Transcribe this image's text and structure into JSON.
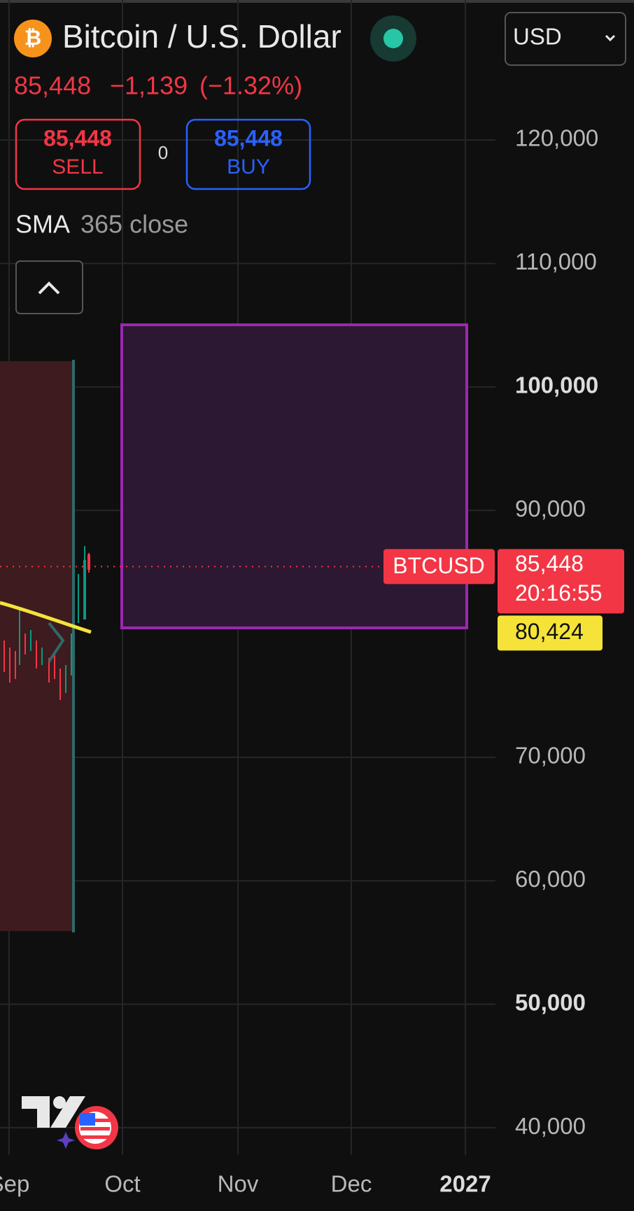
{
  "header": {
    "title": "Bitcoin / U.S. Dollar",
    "currency": "USD",
    "price": "85,448",
    "change": "−1,139",
    "change_pct": "(−1.32%)"
  },
  "trade": {
    "sell_price": "85,448",
    "sell_label": "SELL",
    "spread": "0",
    "buy_price": "85,448",
    "buy_label": "BUY"
  },
  "indicator": {
    "name": "SMA",
    "params": "365 close"
  },
  "price_axis": {
    "ticks": [
      {
        "value": 120000,
        "label": "120,000"
      },
      {
        "value": 110000,
        "label": "110,000"
      },
      {
        "value": 100000,
        "label": "100,000",
        "bold": true
      },
      {
        "value": 90000,
        "label": "90,000"
      },
      {
        "value": 70000,
        "label": "70,000"
      },
      {
        "value": 60000,
        "label": "60,000"
      },
      {
        "value": 50000,
        "label": "50,000",
        "bold": true
      },
      {
        "value": 40000,
        "label": "40,000"
      }
    ]
  },
  "last_price": {
    "symbol": "BTCUSD",
    "value": 85448,
    "label": "85,448",
    "countdown": "20:16:55"
  },
  "sma_value": {
    "value": 80424,
    "label": "80,424"
  },
  "time_axis": [
    {
      "label": "Sep"
    },
    {
      "label": "Oct"
    },
    {
      "label": "Nov"
    },
    {
      "label": "Dec"
    },
    {
      "label": "2027",
      "bold": true
    }
  ]
}
